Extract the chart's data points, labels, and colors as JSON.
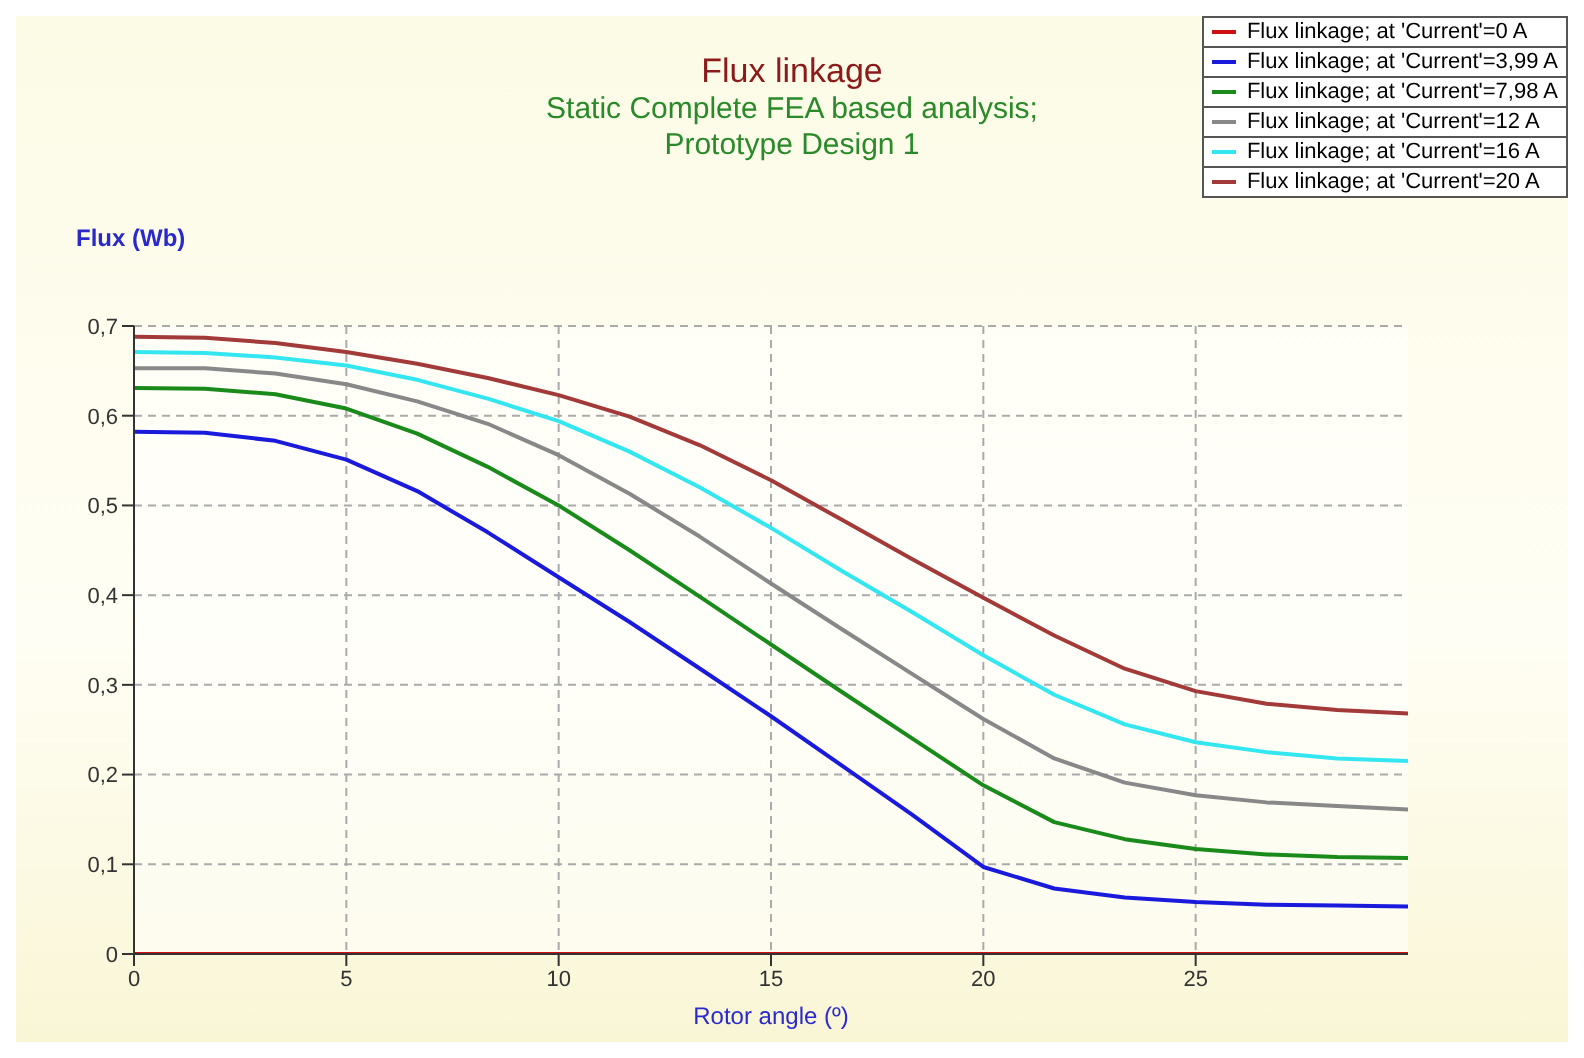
{
  "chart_data": {
    "type": "line",
    "title": "Flux linkage",
    "subtitle": "Static Complete FEA based analysis;\nPrototype Design 1",
    "xlabel": "Rotor angle (º)",
    "ylabel": "Flux (Wb)",
    "x": [
      0,
      1.67,
      3.33,
      5,
      6.67,
      8.33,
      10,
      11.67,
      13.33,
      15,
      16.67,
      18.33,
      20,
      21.67,
      23.33,
      25,
      26.67,
      28.33,
      30
    ],
    "series": [
      {
        "name": "Flux linkage; at 'Current'=0 A",
        "color": "#d01010",
        "values": [
          0,
          0,
          0,
          0,
          0,
          0,
          0,
          0,
          0,
          0,
          0,
          0,
          0,
          0,
          0,
          0,
          0,
          0,
          0
        ]
      },
      {
        "name": "Flux linkage; at 'Current'=3,99 A",
        "color": "#1a1adc",
        "values": [
          0.582,
          0.581,
          0.572,
          0.551,
          0.516,
          0.47,
          0.42,
          0.37,
          0.318,
          0.265,
          0.21,
          0.155,
          0.097,
          0.073,
          0.063,
          0.058,
          0.055,
          0.054,
          0.053
        ]
      },
      {
        "name": "Flux linkage; at 'Current'=7,98 A",
        "color": "#1a8a1a",
        "values": [
          0.631,
          0.63,
          0.624,
          0.608,
          0.58,
          0.543,
          0.5,
          0.45,
          0.398,
          0.345,
          0.292,
          0.24,
          0.188,
          0.147,
          0.128,
          0.117,
          0.111,
          0.108,
          0.107
        ]
      },
      {
        "name": "Flux linkage; at 'Current'=12 A",
        "color": "#888888",
        "values": [
          0.653,
          0.653,
          0.647,
          0.635,
          0.616,
          0.591,
          0.556,
          0.513,
          0.465,
          0.413,
          0.362,
          0.312,
          0.262,
          0.218,
          0.191,
          0.177,
          0.169,
          0.165,
          0.161
        ]
      },
      {
        "name": "Flux linkage; at 'Current'=16 A",
        "color": "#33e6f0",
        "values": [
          0.671,
          0.67,
          0.665,
          0.656,
          0.64,
          0.619,
          0.594,
          0.56,
          0.52,
          0.475,
          0.427,
          0.381,
          0.333,
          0.289,
          0.256,
          0.236,
          0.225,
          0.218,
          0.215
        ]
      },
      {
        "name": "Flux linkage; at 'Current'=20 A",
        "color": "#a33a3a",
        "values": [
          0.688,
          0.687,
          0.681,
          0.671,
          0.658,
          0.642,
          0.623,
          0.599,
          0.567,
          0.528,
          0.484,
          0.44,
          0.397,
          0.355,
          0.318,
          0.293,
          0.279,
          0.272,
          0.268
        ]
      }
    ],
    "xlim": [
      0,
      30
    ],
    "xticks": [
      0,
      5,
      10,
      15,
      20,
      25
    ],
    "ylim": [
      0,
      0.7
    ],
    "yticks": [
      0,
      {
        "value": 0.1,
        "label": "0,1"
      },
      {
        "value": 0.2,
        "label": "0,2"
      },
      {
        "value": 0.3,
        "label": "0,3"
      },
      {
        "value": 0.4,
        "label": "0,4"
      },
      {
        "value": 0.5,
        "label": "0,5"
      },
      {
        "value": 0.6,
        "label": "0,6"
      },
      {
        "value": 0.7,
        "label": "0,7"
      }
    ],
    "grid": true,
    "legend": "top right",
    "marker": "none",
    "line_style": "solid"
  }
}
